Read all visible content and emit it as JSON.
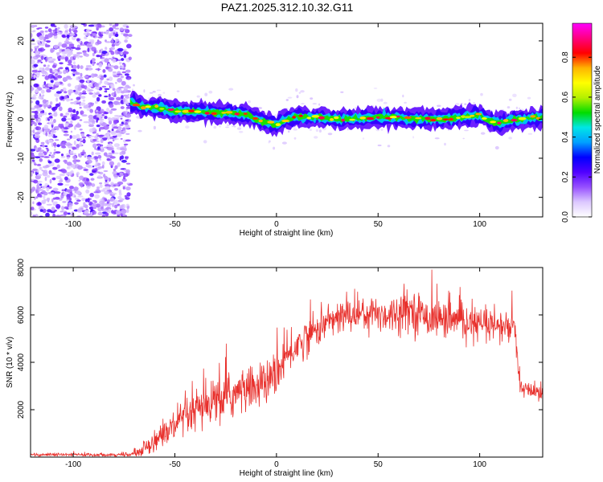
{
  "chart_data": [
    {
      "type": "heatmap",
      "title": "PAZ1.2025.312.10.32.G11",
      "xlabel": "Height of straight line (km)",
      "ylabel": "Frequency (Hz)",
      "xlim": [
        -121,
        131
      ],
      "ylim": [
        -25,
        24.5
      ],
      "xticks": [
        -100,
        -50,
        0,
        50,
        100
      ],
      "xtick_labels": [
        "-100",
        "-50",
        "0",
        "50",
        "100"
      ],
      "yticks": [
        -20,
        -10,
        0,
        10,
        20
      ],
      "ytick_labels": [
        "-20",
        "-10",
        "0",
        "10",
        "20"
      ],
      "colorbar": {
        "label": "Normalized spectral amplitude",
        "range": [
          0,
          0.97
        ],
        "ticks": [
          0,
          0.2,
          0.4,
          0.6,
          0.8
        ],
        "tick_labels": [
          "0.0",
          "0.2",
          "0.4",
          "0.6",
          "0.8"
        ],
        "colormap": "rainbow (white-violet-blue-cyan-green-yellow-red-magenta)"
      },
      "noise_region_end_km": -72,
      "ridge_frequency": {
        "x": [
          -72,
          -65,
          -60,
          -50,
          -40,
          -30,
          -20,
          -15,
          -10,
          -5,
          0,
          5,
          10,
          20,
          30,
          40,
          50,
          60,
          70,
          80,
          90,
          100,
          105,
          110,
          120,
          130
        ],
        "y": [
          4.5,
          3,
          3,
          2,
          2,
          1.5,
          1.5,
          1,
          0,
          -1,
          -1.5,
          0,
          0.5,
          0.5,
          0,
          0,
          0.5,
          0.5,
          0,
          0,
          0.5,
          1,
          -0.5,
          -1,
          0,
          0.5
        ]
      },
      "colors": {
        "colorbar_stops": [
          "#ffffff",
          "#dcc8ff",
          "#9650ff",
          "#5000ff",
          "#0000ff",
          "#00a0ff",
          "#00e6e6",
          "#00dc00",
          "#b4f000",
          "#ffff00",
          "#ffb400",
          "#ff0000",
          "#ff0080",
          "#ff00ff"
        ]
      }
    },
    {
      "type": "line",
      "title": "",
      "xlabel": "Height of straight line (km)",
      "ylabel": "SNR (10 * v/v)",
      "xlim": [
        -121,
        131
      ],
      "ylim": [
        0,
        8000
      ],
      "xticks": [
        -100,
        -50,
        0,
        50,
        100
      ],
      "xtick_labels": [
        "-100",
        "-50",
        "0",
        "50",
        "100"
      ],
      "yticks": [
        2000,
        4000,
        6000,
        8000
      ],
      "ytick_labels": [
        "2000",
        "4000",
        "6000",
        "8000"
      ],
      "series": [
        {
          "name": "SNR",
          "color": "#e8302c",
          "x": [
            -121,
            -100,
            -80,
            -72,
            -68,
            -65,
            -60,
            -55,
            -50,
            -45,
            -40,
            -35,
            -30,
            -25,
            -20,
            -15,
            -10,
            -5,
            0,
            5,
            10,
            15,
            20,
            25,
            30,
            35,
            40,
            45,
            50,
            55,
            60,
            65,
            70,
            75,
            80,
            85,
            90,
            95,
            100,
            105,
            110,
            117,
            118,
            119,
            120,
            122,
            125,
            130
          ],
          "y": [
            100,
            100,
            100,
            100,
            200,
            400,
            700,
            1000,
            1300,
            1600,
            1900,
            2100,
            2300,
            2500,
            2700,
            2800,
            3000,
            3100,
            3500,
            4200,
            4700,
            5100,
            5400,
            5700,
            5850,
            6000,
            6050,
            6100,
            6050,
            6000,
            6100,
            6300,
            6050,
            5900,
            5850,
            5800,
            5700,
            5650,
            5600,
            5500,
            5500,
            5450,
            5000,
            3500,
            2900,
            2850,
            2800,
            2750
          ],
          "variability": [
            60,
            60,
            60,
            60,
            150,
            250,
            400,
            500,
            600,
            700,
            750,
            800,
            850,
            850,
            850,
            800,
            750,
            750,
            700,
            700,
            700,
            650,
            600,
            600,
            600,
            650,
            650,
            650,
            650,
            650,
            700,
            700,
            700,
            650,
            650,
            650,
            650,
            600,
            600,
            600,
            600,
            600,
            600,
            500,
            300,
            300,
            300,
            300
          ]
        }
      ]
    }
  ]
}
